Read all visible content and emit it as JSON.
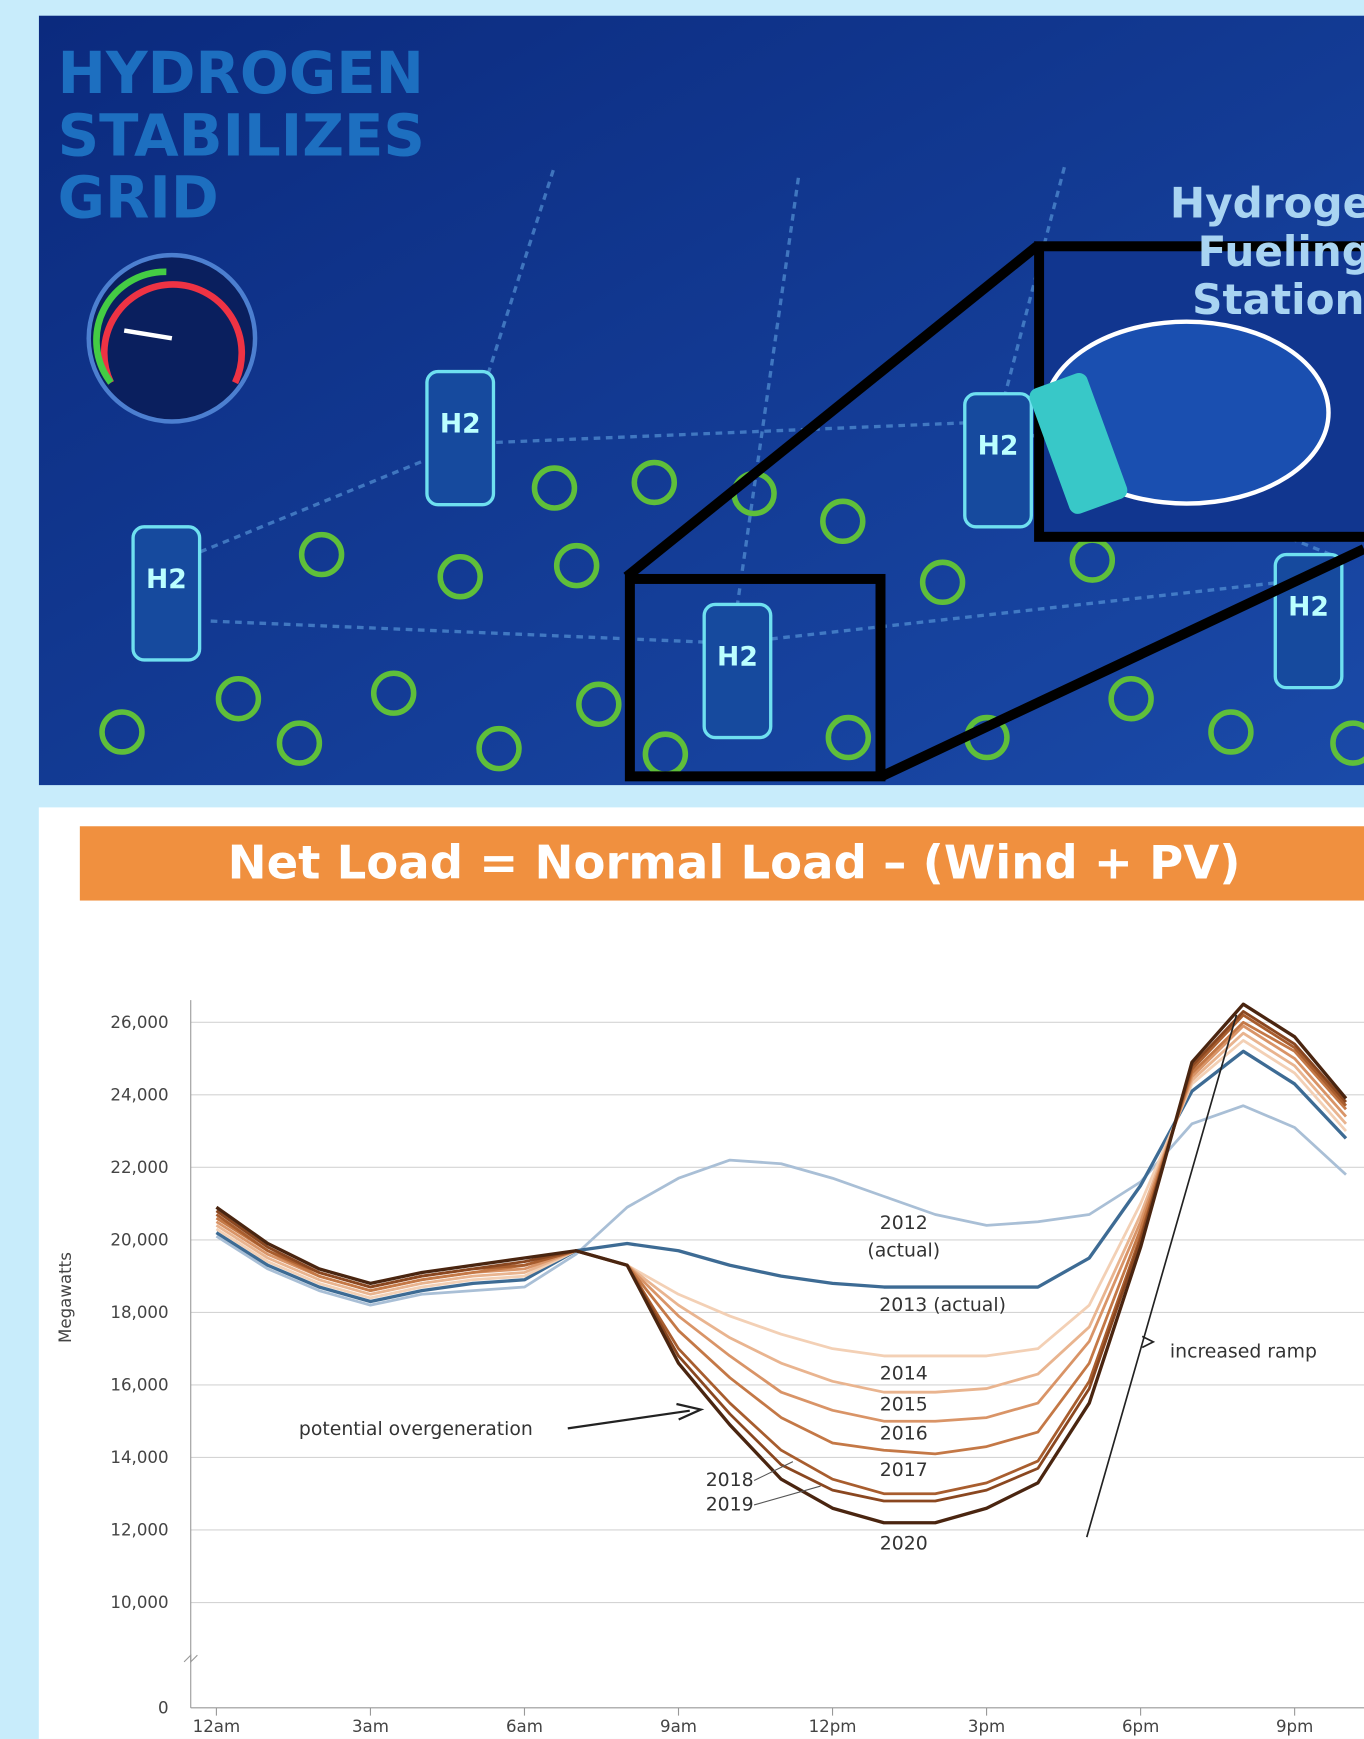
{
  "illustration": {
    "headline": [
      "HYDROGEN",
      "STABILIZES",
      "GRID"
    ],
    "callout": [
      "Hydrogen",
      "Fueling",
      "Stations"
    ],
    "cylinder_label": "H2"
  },
  "chart_data": {
    "type": "line",
    "title": "Net Load = Normal Load – (Wind + PV)",
    "y_label": "Megawatts",
    "x": [
      0,
      1,
      2,
      3,
      4,
      5,
      6,
      7,
      8,
      9,
      10,
      11,
      12,
      13,
      14,
      15,
      16,
      17,
      18,
      19,
      20,
      21,
      22
    ],
    "xlim": [
      -0.5,
      22.5
    ],
    "xticks": [
      {
        "value": 0,
        "label": "12am"
      },
      {
        "value": 3,
        "label": "3am"
      },
      {
        "value": 6,
        "label": "6am"
      },
      {
        "value": 9,
        "label": "9am"
      },
      {
        "value": 12,
        "label": "12pm"
      },
      {
        "value": 15,
        "label": "3pm"
      },
      {
        "value": 18,
        "label": "6pm"
      },
      {
        "value": 21,
        "label": "9pm"
      }
    ],
    "ylim": [
      0,
      26000
    ],
    "axis_break": true,
    "grid": true,
    "yticks": [
      0,
      {
        "value": 10000,
        "label": "10,000"
      },
      {
        "value": 12000,
        "label": "12,000"
      },
      {
        "value": 14000,
        "label": "14,000"
      },
      {
        "value": 16000,
        "label": "16,000"
      },
      {
        "value": 18000,
        "label": "18,000"
      },
      {
        "value": 20000,
        "label": "20,000"
      },
      {
        "value": 22000,
        "label": "22,000"
      },
      {
        "value": 24000,
        "label": "24,000"
      },
      {
        "value": 26000,
        "label": "26,000"
      }
    ],
    "series": [
      {
        "name": "2012",
        "color": "#a9bfd6",
        "values": [
          20100,
          19200,
          18600,
          18200,
          18500,
          18600,
          18700,
          19600,
          20900,
          21700,
          22200,
          22100,
          21700,
          21200,
          20700,
          20400,
          20500,
          20700,
          21600,
          23200,
          23700,
          23100,
          21800
        ]
      },
      {
        "name": "2013 (actual)",
        "color": "#3d6b94",
        "values": [
          20200,
          19300,
          18700,
          18300,
          18600,
          18800,
          18900,
          19700,
          19900,
          19700,
          19300,
          19000,
          18800,
          18700,
          18700,
          18700,
          18700,
          19500,
          21500,
          24100,
          25200,
          24300,
          22800
        ]
      },
      {
        "name": "2014",
        "color": "#f3d0b5",
        "values": [
          20300,
          19400,
          18800,
          18400,
          18700,
          18900,
          19000,
          19700,
          19300,
          18500,
          17900,
          17400,
          17000,
          16800,
          16800,
          16800,
          17000,
          18200,
          21000,
          24300,
          25500,
          24600,
          23000
        ]
      },
      {
        "name": "2015",
        "color": "#e9b48f",
        "values": [
          20400,
          19500,
          18900,
          18500,
          18800,
          19000,
          19100,
          19700,
          19300,
          18200,
          17300,
          16600,
          16100,
          15800,
          15800,
          15900,
          16300,
          17600,
          20700,
          24400,
          25700,
          24800,
          23200
        ]
      },
      {
        "name": "2016",
        "color": "#d99467",
        "values": [
          20500,
          19600,
          19000,
          18600,
          18900,
          19100,
          19200,
          19700,
          19300,
          17900,
          16800,
          15800,
          15300,
          15000,
          15000,
          15100,
          15500,
          17200,
          20500,
          24500,
          25900,
          25000,
          23400
        ]
      },
      {
        "name": "2017",
        "color": "#c47846",
        "values": [
          20600,
          19700,
          19000,
          18600,
          18900,
          19100,
          19300,
          19700,
          19300,
          17500,
          16200,
          15100,
          14400,
          14200,
          14100,
          14300,
          14700,
          16600,
          20300,
          24600,
          26000,
          25200,
          23600
        ]
      },
      {
        "name": "2018",
        "color": "#a85d2e",
        "values": [
          20700,
          19700,
          19100,
          18700,
          19000,
          19200,
          19300,
          19700,
          19300,
          17000,
          15500,
          14200,
          13400,
          13000,
          13000,
          13300,
          13900,
          16100,
          20100,
          24700,
          26200,
          25300,
          23700
        ]
      },
      {
        "name": "2019",
        "color": "#8a4720",
        "values": [
          20800,
          19800,
          19100,
          18700,
          19000,
          19200,
          19400,
          19700,
          19300,
          16800,
          15200,
          13800,
          13100,
          12800,
          12800,
          13100,
          13700,
          15900,
          20000,
          24800,
          26300,
          25400,
          23800
        ]
      },
      {
        "name": "2020",
        "color": "#4a2510",
        "values": [
          20900,
          19900,
          19200,
          18800,
          19100,
          19300,
          19500,
          19700,
          19300,
          16600,
          14900,
          13400,
          12600,
          12200,
          12200,
          12600,
          13300,
          15500,
          19800,
          24900,
          26500,
          25600,
          23900
        ]
      }
    ],
    "annotations": [
      "(actual)",
      "potential overgeneration",
      "increased ramp"
    ]
  }
}
